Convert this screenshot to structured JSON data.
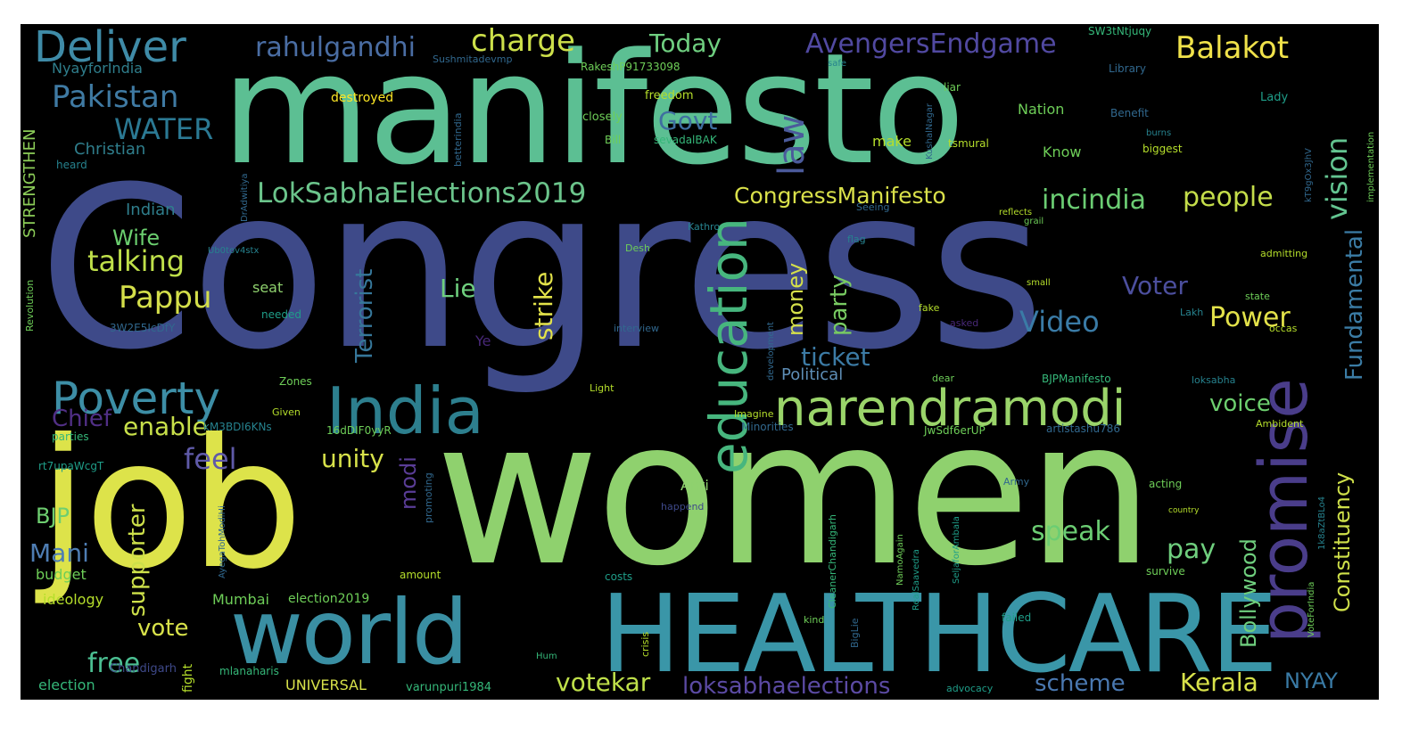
{
  "colors": {
    "background": "#000000",
    "palette": [
      "#fde725",
      "#b5de2b",
      "#6ece58",
      "#35b779",
      "#1f9e89",
      "#26828e",
      "#31688e",
      "#3e4989",
      "#482878",
      "#440154"
    ]
  },
  "words": [
    {
      "text": "Congress",
      "color": "#3e4a89"
    },
    {
      "text": "women",
      "color": "#8fd16e"
    },
    {
      "text": "manifesto",
      "color": "#5cbf93"
    },
    {
      "text": "job",
      "color": "#dde34a"
    },
    {
      "text": "HEALTHCARE",
      "color": "#3a96a8"
    },
    {
      "text": "world",
      "color": "#3a8fa3"
    },
    {
      "text": "India",
      "color": "#2d7f8e"
    },
    {
      "text": "narendramodi",
      "color": "#9ad46a"
    },
    {
      "text": "promise",
      "color": "#4a3d8a"
    },
    {
      "text": "education",
      "color": "#47b67e"
    },
    {
      "text": "Poverty",
      "color": "#3d8ea6"
    },
    {
      "text": "Deliver",
      "color": "#3f8ba7"
    },
    {
      "text": "LokSabhaElections2019",
      "color": "#6bc48b"
    },
    {
      "text": "law",
      "color": "#4b5a9b"
    },
    {
      "text": "Pakistan",
      "color": "#3f7aa3"
    },
    {
      "text": "rahulgandhi",
      "color": "#4a6da3"
    },
    {
      "text": "AvengersEndgame",
      "color": "#5149a1"
    },
    {
      "text": "charge",
      "color": "#cde04a"
    },
    {
      "text": "Today",
      "color": "#6fcf80"
    },
    {
      "text": "Balakot",
      "color": "#f0e24a"
    },
    {
      "text": "WATER",
      "color": "#2b7993"
    },
    {
      "text": "CongressManifesto",
      "color": "#d9e04a"
    },
    {
      "text": "Govt",
      "color": "#3f6fa0"
    },
    {
      "text": "vision",
      "color": "#63c490"
    },
    {
      "text": "incindia",
      "color": "#6bcd73"
    },
    {
      "text": "people",
      "color": "#c4dd4a"
    },
    {
      "text": "Pappu",
      "color": "#d4df4a"
    },
    {
      "text": "Terrorist",
      "color": "#36779a"
    },
    {
      "text": "strike",
      "color": "#e2e24a"
    },
    {
      "text": "Lie",
      "color": "#6fcf7e"
    },
    {
      "text": "money",
      "color": "#d5e04a"
    },
    {
      "text": "party",
      "color": "#78cb62"
    },
    {
      "text": "Video",
      "color": "#3a7ba6"
    },
    {
      "text": "Voter",
      "color": "#4c4f9e"
    },
    {
      "text": "Power",
      "color": "#e3e24a"
    },
    {
      "text": "Fundamental",
      "color": "#3b7ca5"
    },
    {
      "text": "Constituency",
      "color": "#cfe04a"
    },
    {
      "text": "talking",
      "color": "#bfe04a"
    },
    {
      "text": "Wife",
      "color": "#6bcf6f"
    },
    {
      "text": "ticket",
      "color": "#3c7ba5"
    },
    {
      "text": "Political",
      "color": "#5e8eb6"
    },
    {
      "text": "voice",
      "color": "#6dcf6f"
    },
    {
      "text": "enable",
      "color": "#c8e04a"
    },
    {
      "text": "feel",
      "color": "#5f5aa8"
    },
    {
      "text": "unity",
      "color": "#d8e24a"
    },
    {
      "text": "Chief",
      "color": "#512f86"
    },
    {
      "text": "supporter",
      "color": "#cde04a"
    },
    {
      "text": "BJP",
      "color": "#6ece70"
    },
    {
      "text": "Mani",
      "color": "#4e7db3"
    },
    {
      "text": "modi",
      "color": "#5a3d97"
    },
    {
      "text": "speak",
      "color": "#6bcd73"
    },
    {
      "text": "pay",
      "color": "#6fcf7e"
    },
    {
      "text": "Bollywood",
      "color": "#6fcf7e"
    },
    {
      "text": "vote",
      "color": "#d8e24a"
    },
    {
      "text": "free",
      "color": "#4bbf92"
    },
    {
      "text": "votekar",
      "color": "#bfe04a"
    },
    {
      "text": "loksabhaelections",
      "color": "#5b4aa3"
    },
    {
      "text": "scheme",
      "color": "#4a78b0"
    },
    {
      "text": "Kerala",
      "color": "#d8e24a"
    },
    {
      "text": "NYAY",
      "color": "#3a7ba6"
    },
    {
      "text": "STRENGTHEN",
      "color": "#8ccd58"
    },
    {
      "text": "Christian",
      "color": "#2f7e8c"
    },
    {
      "text": "NyayforIndia",
      "color": "#2f7e8c"
    },
    {
      "text": "Indian",
      "color": "#2f7e8c"
    },
    {
      "text": "seat",
      "color": "#8fd16e"
    },
    {
      "text": "Anti",
      "color": "#8fd16e"
    },
    {
      "text": "UNIVERSAL",
      "color": "#d8e24a"
    },
    {
      "text": "election",
      "color": "#35b779"
    },
    {
      "text": "budget",
      "color": "#6ece58"
    },
    {
      "text": "ideology",
      "color": "#b5de2b"
    },
    {
      "text": "Mumbai",
      "color": "#6ece58"
    },
    {
      "text": "election2019",
      "color": "#6ece58"
    },
    {
      "text": "Chandigarh",
      "color": "#3e4989"
    },
    {
      "text": "fight",
      "color": "#b5de2b"
    },
    {
      "text": "mlanaharis",
      "color": "#35b779"
    },
    {
      "text": "varunpuri1984",
      "color": "#35b779"
    },
    {
      "text": "destroyed",
      "color": "#fde725"
    },
    {
      "text": "freedom",
      "color": "#b5de2b"
    },
    {
      "text": "closely",
      "color": "#6ece58"
    },
    {
      "text": "Bill",
      "color": "#6ece58"
    },
    {
      "text": "sevadalBAK",
      "color": "#35b779"
    },
    {
      "text": "Nation",
      "color": "#6ece58"
    },
    {
      "text": "make",
      "color": "#b5de2b"
    },
    {
      "text": "Know",
      "color": "#6ece58"
    },
    {
      "text": "tsmural",
      "color": "#b5de2b"
    },
    {
      "text": "Benefit",
      "color": "#31688e"
    },
    {
      "text": "biggest",
      "color": "#b5de2b"
    },
    {
      "text": "burns",
      "color": "#26828e"
    },
    {
      "text": "Lady",
      "color": "#1f9e89"
    },
    {
      "text": "Library",
      "color": "#31688e"
    },
    {
      "text": "SW3tNtjuqy",
      "color": "#35b779"
    },
    {
      "text": "RakeshP91733098",
      "color": "#6ece58"
    },
    {
      "text": "Sushmitadevmp",
      "color": "#31688e"
    },
    {
      "text": "safe",
      "color": "#26828e"
    },
    {
      "text": "liar",
      "color": "#6ece58"
    },
    {
      "text": "heard",
      "color": "#26828e"
    },
    {
      "text": "3W2E5IcDfY",
      "color": "#31688e"
    },
    {
      "text": "Revolution",
      "color": "#6ece58"
    },
    {
      "text": "Zones",
      "color": "#6ece58"
    },
    {
      "text": "Given",
      "color": "#b5de2b"
    },
    {
      "text": "kM3BDI6KNs",
      "color": "#26828e"
    },
    {
      "text": "parties",
      "color": "#35b779"
    },
    {
      "text": "rt7upaWcgT",
      "color": "#1f9e89"
    },
    {
      "text": "16dDIF0yyR",
      "color": "#6ece58"
    },
    {
      "text": "Minorities",
      "color": "#31688e"
    },
    {
      "text": "Imagine",
      "color": "#b5de2b"
    },
    {
      "text": "Light",
      "color": "#b5de2b"
    },
    {
      "text": "interview",
      "color": "#31688e"
    },
    {
      "text": "Ye",
      "color": "#482878"
    },
    {
      "text": "needed",
      "color": "#1f9e89"
    },
    {
      "text": "Seeing",
      "color": "#31688e"
    },
    {
      "text": "flag",
      "color": "#26828e"
    },
    {
      "text": "Desh",
      "color": "#6ece58"
    },
    {
      "text": "Kathro",
      "color": "#26828e"
    },
    {
      "text": "grail",
      "color": "#6ece58"
    },
    {
      "text": "reflects",
      "color": "#b5de2b"
    },
    {
      "text": "small",
      "color": "#b5de2b"
    },
    {
      "text": "fake",
      "color": "#b5de2b"
    },
    {
      "text": "asked",
      "color": "#482878"
    },
    {
      "text": "Lakh",
      "color": "#26828e"
    },
    {
      "text": "state",
      "color": "#6ece58"
    },
    {
      "text": "occas",
      "color": "#b5de2b"
    },
    {
      "text": "development",
      "color": "#31688e"
    },
    {
      "text": "dear",
      "color": "#6ece58"
    },
    {
      "text": "BJPManifesto",
      "color": "#35b779"
    },
    {
      "text": "loksabha",
      "color": "#26828e"
    },
    {
      "text": "JwSdf6erUP",
      "color": "#6ece58"
    },
    {
      "text": "artistashu786",
      "color": "#31688e"
    },
    {
      "text": "Ambident",
      "color": "#b5de2b"
    },
    {
      "text": "admitting",
      "color": "#b5de2b"
    },
    {
      "text": "Army",
      "color": "#31688e"
    },
    {
      "text": "acting",
      "color": "#6ece58"
    },
    {
      "text": "country",
      "color": "#b5de2b"
    },
    {
      "text": "survive",
      "color": "#6ece58"
    },
    {
      "text": "failed",
      "color": "#1f9e89"
    },
    {
      "text": "happend",
      "color": "#3e4989"
    },
    {
      "text": "amount",
      "color": "#b5de2b"
    },
    {
      "text": "costs",
      "color": "#1f9e89"
    },
    {
      "text": "crisis",
      "color": "#b5de2b"
    },
    {
      "text": "advocacy",
      "color": "#1f9e89"
    },
    {
      "text": "Hum",
      "color": "#35b779"
    },
    {
      "text": "kind",
      "color": "#6ece58"
    },
    {
      "text": "promoting",
      "color": "#31688e"
    },
    {
      "text": "CleanerChandigarh",
      "color": "#35b779"
    },
    {
      "text": "BigLie",
      "color": "#31688e"
    },
    {
      "text": "NamoAgain",
      "color": "#6ece58"
    },
    {
      "text": "RealSaavedra",
      "color": "#1f9e89"
    },
    {
      "text": "SeljaforAmbala",
      "color": "#1f9e89"
    },
    {
      "text": "VoteForIndia",
      "color": "#6ece58"
    },
    {
      "text": "1k8aZtBLo4",
      "color": "#26828e"
    },
    {
      "text": "implementation",
      "color": "#6ece58"
    },
    {
      "text": "betterindia",
      "color": "#31688e"
    },
    {
      "text": "DrAdwitiya",
      "color": "#31688e"
    },
    {
      "text": "Ub0tov4stx",
      "color": "#26828e"
    },
    {
      "text": "AyegaTohModiHi",
      "color": "#31688e"
    },
    {
      "text": "KushalNagar",
      "color": "#31688e"
    },
    {
      "text": "kT9gOx3JhV",
      "color": "#31688e"
    }
  ]
}
